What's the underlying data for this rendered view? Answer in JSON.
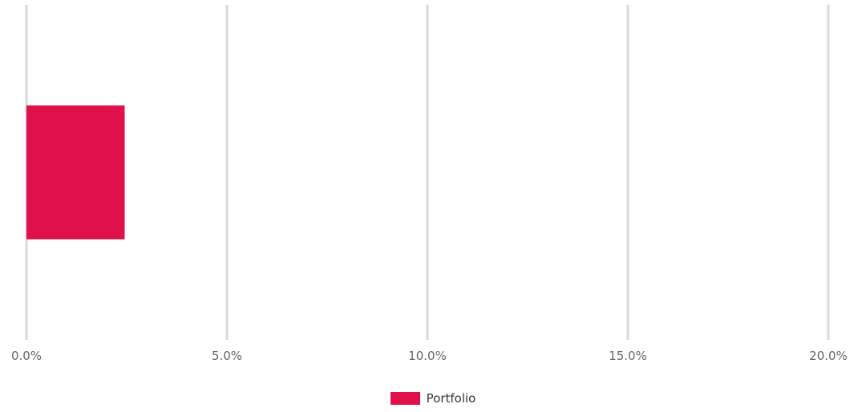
{
  "chart_data": {
    "type": "bar",
    "orientation": "horizontal",
    "categories": [
      ""
    ],
    "series": [
      {
        "name": "Portfolio",
        "values": [
          2.45
        ],
        "color": "#e0104a"
      }
    ],
    "xlim": [
      0,
      20
    ],
    "x_ticks": [
      0,
      5,
      10,
      15,
      20
    ],
    "x_tick_labels": [
      "0.0%",
      "5.0%",
      "10.0%",
      "15.0%",
      "20.0%"
    ],
    "grid": true,
    "grid_color": "#d9d9d9",
    "legend_position": "bottom-center"
  }
}
